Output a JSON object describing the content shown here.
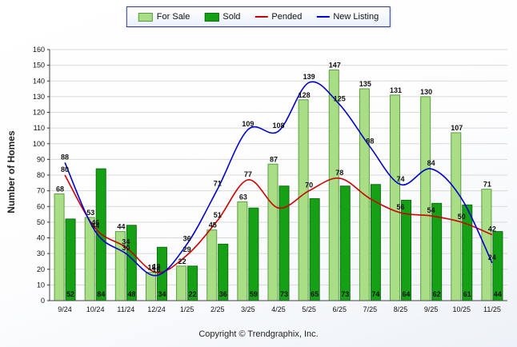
{
  "legend": {
    "items": [
      {
        "label": "For Sale",
        "color": "#a9de87",
        "border": "#5a9e3f",
        "type": "bar"
      },
      {
        "label": "Sold",
        "color": "#16a016",
        "border": "#0c700c",
        "type": "bar"
      },
      {
        "label": "Pended",
        "color": "#cc0000",
        "type": "line"
      },
      {
        "label": "New Listing",
        "color": "#0000cc",
        "type": "line"
      }
    ]
  },
  "axes": {
    "y_label": "Number of Homes",
    "y_min": 0,
    "y_max": 160,
    "y_step": 10
  },
  "copyright": "Copyright © Trendgraphix, Inc.",
  "chart_data": {
    "type": "bar",
    "subtype": "grouped bars with overlaid lines",
    "title": "",
    "xlabel": "",
    "ylabel": "Number of Homes",
    "ylim": [
      0,
      160
    ],
    "grid": true,
    "legend_position": "top",
    "categories": [
      "9/24",
      "10/24",
      "11/24",
      "12/24",
      "1/25",
      "2/25",
      "3/25",
      "4/25",
      "5/25",
      "6/25",
      "7/25",
      "8/25",
      "9/25",
      "10/25",
      "11/25"
    ],
    "series": [
      {
        "name": "For Sale",
        "type": "bar",
        "color": "#a9de87",
        "border": "#5a9e3f",
        "values": [
          68,
          53,
          44,
          18,
          22,
          45,
          63,
          87,
          128,
          147,
          135,
          131,
          130,
          107,
          71
        ],
        "labels": [
          68,
          53,
          44,
          18,
          22,
          45,
          63,
          87,
          128,
          147,
          135,
          131,
          130,
          107,
          71
        ]
      },
      {
        "name": "Sold",
        "type": "bar",
        "color": "#16a016",
        "border": "#0c700c",
        "values": [
          52,
          84,
          48,
          34,
          22,
          36,
          59,
          73,
          65,
          73,
          74,
          64,
          62,
          61,
          44
        ],
        "labels": [
          52,
          84,
          48,
          34,
          22,
          36,
          59,
          73,
          65,
          73,
          74,
          64,
          62,
          61,
          44
        ]
      },
      {
        "name": "Pended",
        "type": "line",
        "color": "#cc0000",
        "values": [
          80,
          46,
          34,
          18,
          29,
          51,
          77,
          59,
          70,
          78,
          65,
          56,
          54,
          50,
          42
        ],
        "labels": [
          80,
          46,
          34,
          18,
          29,
          51,
          77,
          null,
          70,
          78,
          null,
          56,
          54,
          50,
          42
        ]
      },
      {
        "name": "New Listing",
        "type": "line",
        "color": "#0000cc",
        "values": [
          88,
          44,
          30,
          16,
          36,
          71,
          109,
          108,
          139,
          125,
          98,
          74,
          84,
          65,
          24
        ],
        "labels": [
          88,
          44,
          30,
          16,
          36,
          71,
          109,
          108,
          139,
          125,
          98,
          74,
          84,
          null,
          24
        ]
      }
    ]
  }
}
